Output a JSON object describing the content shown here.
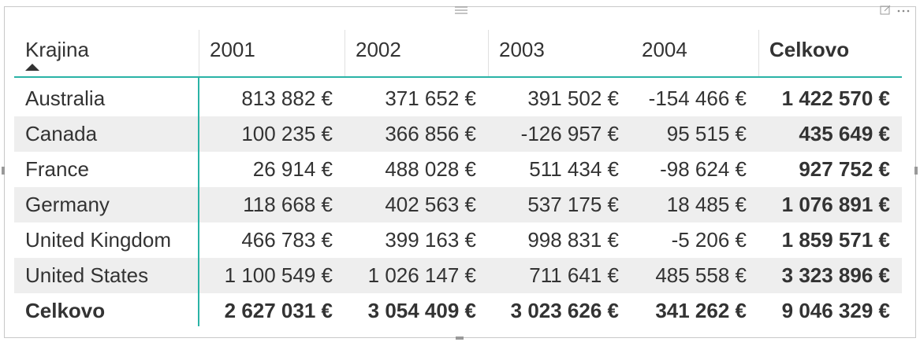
{
  "table": {
    "header": [
      "Krajina",
      "2001",
      "2002",
      "2003",
      "2004",
      "Celkovo"
    ],
    "rows": [
      [
        "Australia",
        "813 882 €",
        "371 652 €",
        "391 502 €",
        "-154 466 €",
        "1 422 570 €"
      ],
      [
        "Canada",
        "100 235 €",
        "366 856 €",
        "-126 957 €",
        "95 515 €",
        "435 649 €"
      ],
      [
        "France",
        "26 914 €",
        "488 028 €",
        "511 434 €",
        "-98 624 €",
        "927 752 €"
      ],
      [
        "Germany",
        "118 668 €",
        "402 563 €",
        "537 175 €",
        "18 485 €",
        "1 076 891 €"
      ],
      [
        "United Kingdom",
        "466 783 €",
        "399 163 €",
        "998 831 €",
        "-5 206 €",
        "1 859 571 €"
      ],
      [
        "United States",
        "1 100 549 €",
        "1 026 147 €",
        "711 641 €",
        "485 558 €",
        "3 323 896 €"
      ]
    ],
    "total": [
      "Celkovo",
      "2 627 031 €",
      "3 054 409 €",
      "3 023 626 €",
      "341 262 €",
      "9 046 329 €"
    ]
  }
}
